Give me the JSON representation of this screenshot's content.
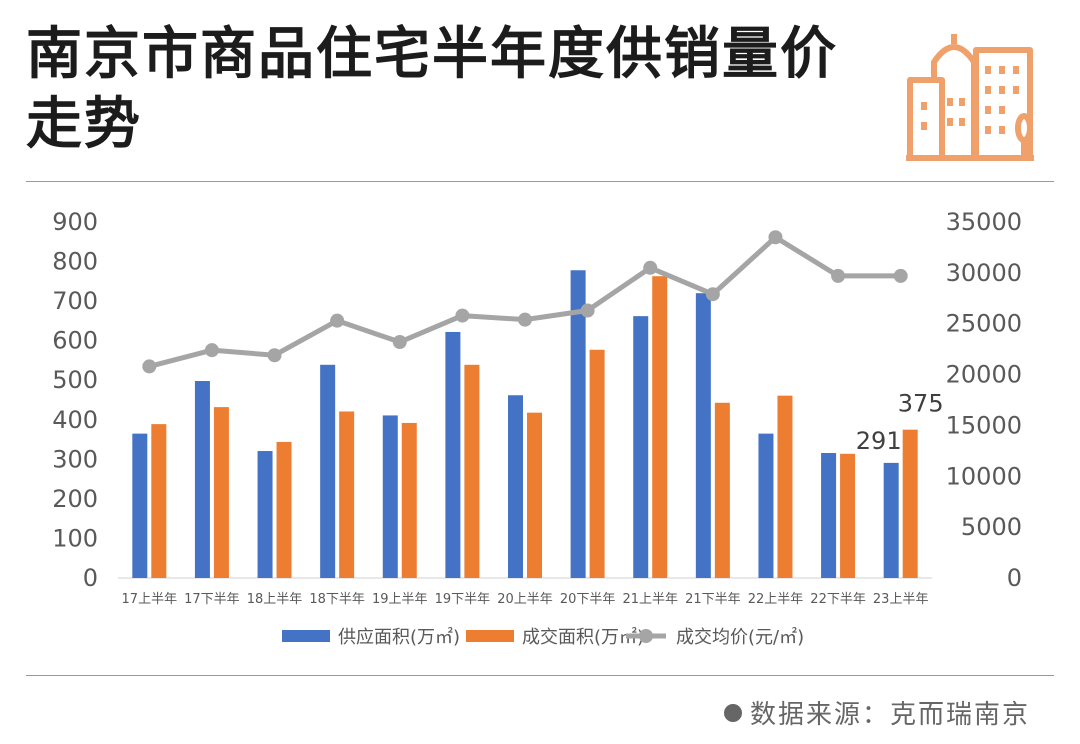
{
  "header": {
    "title": "南京市商品住宅半年度供销量价走势",
    "logo_icon": "city-buildings-icon"
  },
  "source": {
    "text": "数据来源：克而瑞南京",
    "dot_icon": "bullet-dot-icon"
  },
  "colors": {
    "supply": "#4472c4",
    "deal": "#ed7d31",
    "price": "#a5a5a5",
    "logo": "#f0a06a",
    "axis_text": "#595959",
    "title": "#1c1c1c"
  },
  "chart_data": {
    "type": "bar",
    "categories": [
      "17上半年",
      "17下半年",
      "18上半年",
      "18下半年",
      "19上半年",
      "19下半年",
      "20上半年",
      "20下半年",
      "21上半年",
      "21下半年",
      "22上半年",
      "22下半年",
      "23上半年"
    ],
    "series": [
      {
        "name": "供应面积(万㎡)",
        "type": "bar",
        "axis": "left",
        "values": [
          365,
          498,
          321,
          539,
          411,
          622,
          462,
          778,
          662,
          720,
          365,
          316,
          291
        ]
      },
      {
        "name": "成交面积(万㎡)",
        "type": "bar",
        "axis": "left",
        "values": [
          389,
          432,
          344,
          421,
          392,
          539,
          418,
          577,
          763,
          443,
          461,
          314,
          375
        ]
      },
      {
        "name": "成交均价(元/㎡)",
        "type": "line",
        "axis": "right",
        "values": [
          20800,
          22400,
          21900,
          25300,
          23200,
          25800,
          25400,
          26300,
          30500,
          27900,
          33500,
          29700,
          29700
        ]
      }
    ],
    "data_labels": [
      {
        "category": "23上半年",
        "series": "供应面积(万㎡)",
        "text": "291"
      },
      {
        "category": "23上半年",
        "series": "成交面积(万㎡)",
        "text": "375"
      }
    ],
    "ylim_left": [
      0,
      900
    ],
    "yticks_left": [
      0,
      100,
      200,
      300,
      400,
      500,
      600,
      700,
      800,
      900
    ],
    "ylim_right": [
      0,
      35000
    ],
    "yticks_right": [
      0,
      5000,
      10000,
      15000,
      20000,
      25000,
      30000,
      35000
    ],
    "grid": false,
    "legend_position": "bottom"
  }
}
